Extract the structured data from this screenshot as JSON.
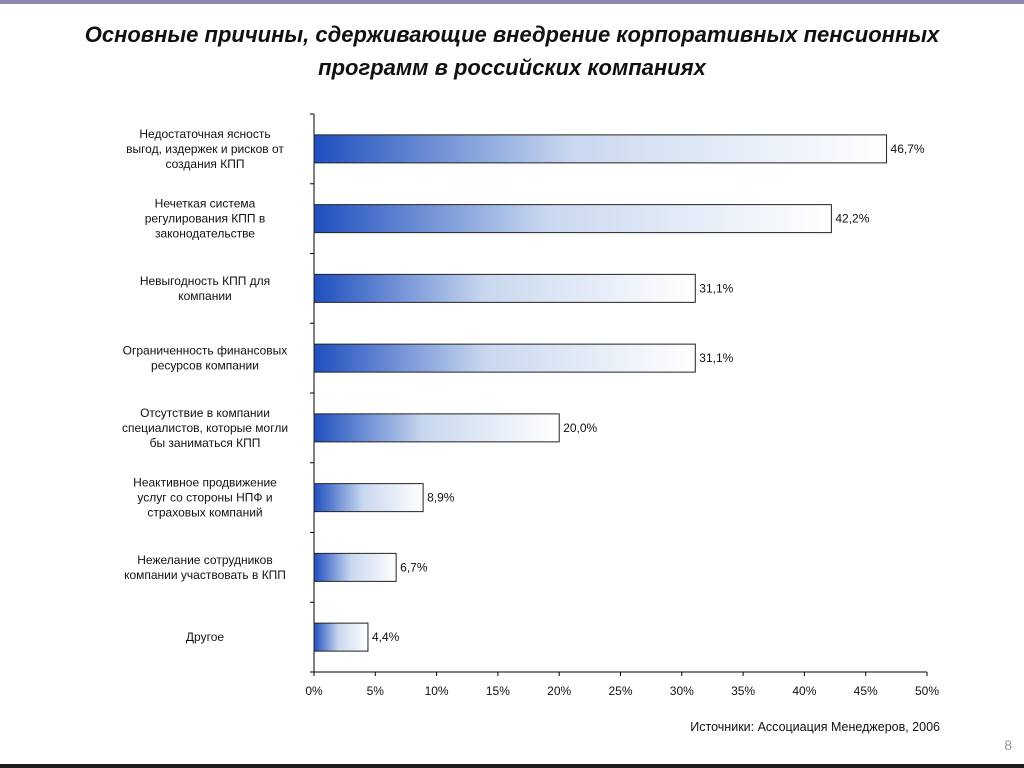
{
  "slide": {
    "title": "Основные причины, сдерживающие внедрение корпоративных пенсионных программ в российских компаниях",
    "source": "Источники: Ассоциация  Менеджеров, 2006",
    "page_number": "8"
  },
  "colors": {
    "bar_dark": "#1f4fbf",
    "bar_light": "#ffffff",
    "top_stripe": "#8e86ae"
  },
  "chart_data": {
    "type": "bar",
    "orientation": "horizontal",
    "title": "Основные причины, сдерживающие внедрение корпоративных пенсионных программ в российских компаниях",
    "categories": [
      [
        "Недостаточная ясность",
        "выгод, издержек и рисков от",
        "создания КПП"
      ],
      [
        "Нечеткая система",
        "регулирования КПП в",
        "законодательстве"
      ],
      [
        "Невыгодность КПП для",
        "компании"
      ],
      [
        "Ограниченность финансовых",
        "ресурсов компании"
      ],
      [
        "Отсутствие в компании",
        "специалистов, которые могли",
        "бы заниматься КПП"
      ],
      [
        "Неактивное продвижение",
        "услуг со стороны  НПФ и",
        "страховых компаний"
      ],
      [
        "Нежелание сотрудников",
        "компании участвовать в КПП"
      ],
      [
        "Другое"
      ]
    ],
    "values": [
      46.7,
      42.2,
      31.1,
      31.1,
      20.0,
      8.9,
      6.7,
      4.4
    ],
    "value_labels": [
      "46,7%",
      "42,2%",
      "31,1%",
      "31,1%",
      "20,0%",
      "8,9%",
      "6,7%",
      "4,4%"
    ],
    "xlim": [
      0,
      50
    ],
    "x_ticks": [
      "0%",
      "5%",
      "10%",
      "15%",
      "20%",
      "25%",
      "30%",
      "35%",
      "40%",
      "45%",
      "50%"
    ],
    "xlabel": "",
    "ylabel": "",
    "grid": false,
    "legend": "none"
  }
}
